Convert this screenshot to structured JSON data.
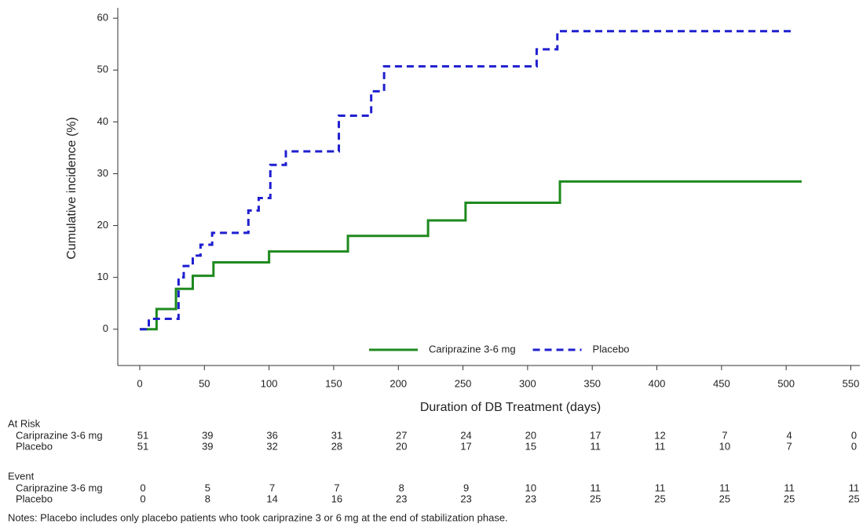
{
  "chart_data": {
    "type": "step",
    "x_label": "Duration of DB Treatment (days)",
    "y_label": "Cumulative incidence (%)",
    "xlim": [
      -17,
      557
    ],
    "ylim": [
      -7,
      62
    ],
    "xticks": [
      0,
      50,
      100,
      150,
      200,
      250,
      300,
      350,
      400,
      450,
      500,
      550
    ],
    "yticks": [
      0,
      10,
      20,
      30,
      40,
      50,
      60
    ],
    "legend": "lower center",
    "series": [
      {
        "name": "Cariprazine 3-6 mg",
        "color": "#1e8a1e",
        "dash": false,
        "x": [
          0,
          13,
          28,
          41,
          57,
          100,
          161,
          223,
          252,
          325,
          512
        ],
        "values": [
          0,
          3.9,
          7.8,
          10.3,
          12.9,
          15,
          18,
          21,
          24.4,
          28.5,
          28.5
        ]
      },
      {
        "name": "Placebo",
        "color": "#1f1fd0",
        "dash": true,
        "x": [
          0,
          7,
          27,
          30,
          34,
          41,
          47,
          56,
          84,
          92,
          101,
          113,
          154,
          179,
          189,
          307,
          323,
          506
        ],
        "values": [
          0,
          2,
          2,
          10,
          12.2,
          14.2,
          16.3,
          18.6,
          22.9,
          25.3,
          31.7,
          34.3,
          41.2,
          45.9,
          50.7,
          54,
          57.5,
          57.5
        ]
      }
    ]
  },
  "at_risk": {
    "title": "At Risk",
    "rows": [
      {
        "name": "Cariprazine 3-6 mg",
        "color": "#1e8a1e",
        "values": [
          51,
          39,
          36,
          31,
          27,
          24,
          20,
          17,
          12,
          7,
          4,
          0
        ]
      },
      {
        "name": "Placebo",
        "color": "#1f1fd0",
        "values": [
          51,
          39,
          32,
          28,
          20,
          17,
          15,
          11,
          11,
          10,
          7,
          0
        ]
      }
    ]
  },
  "events": {
    "title": "Event",
    "rows": [
      {
        "name": "Cariprazine 3-6 mg",
        "color": "#1e8a1e",
        "values": [
          0,
          5,
          7,
          7,
          8,
          9,
          10,
          11,
          11,
          11,
          11,
          11
        ]
      },
      {
        "name": "Placebo",
        "color": "#1f1fd0",
        "values": [
          0,
          8,
          14,
          16,
          23,
          23,
          23,
          25,
          25,
          25,
          25,
          25
        ]
      }
    ]
  },
  "note": "Notes: Placebo includes only placebo patients who took cariprazine 3 or 6 mg at the end of stabilization phase."
}
